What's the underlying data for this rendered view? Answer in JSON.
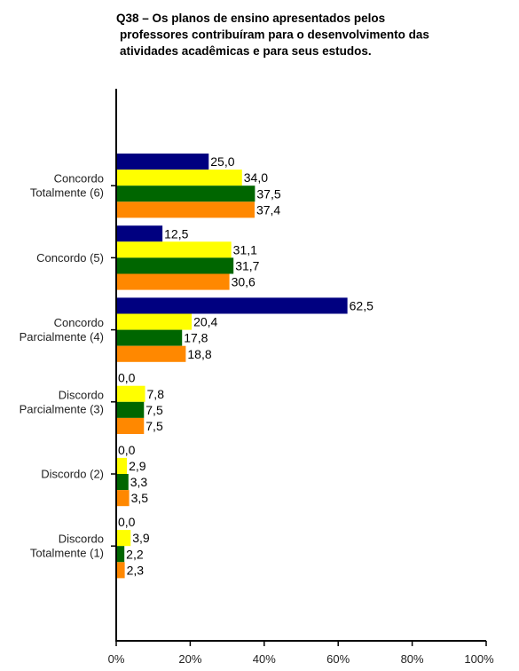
{
  "chart_data": {
    "type": "bar",
    "orientation": "horizontal",
    "title": [
      "Q38 – Os planos de ensino apresentados pelos",
      "professores contribuíram para o desenvolvimento das",
      "atividades acadêmicas e para seus estudos."
    ],
    "categories": [
      [
        "Concordo",
        "Totalmente (6)"
      ],
      [
        "Concordo (5)"
      ],
      [
        "Concordo",
        "Parcialmente (4)"
      ],
      [
        "Discordo",
        "Parcialmente (3)"
      ],
      [
        "Discordo (2)"
      ],
      [
        "Discordo",
        "Totalmente (1)"
      ]
    ],
    "series": [
      {
        "color": "#000080",
        "values": [
          25.0,
          12.5,
          62.5,
          0.0,
          0.0,
          0.0
        ],
        "labels": [
          "25,0",
          "12,5",
          "62,5",
          "0,0",
          "0,0",
          "0,0"
        ]
      },
      {
        "color": "#FFFF00",
        "values": [
          34.0,
          31.1,
          20.4,
          7.8,
          2.9,
          3.9
        ],
        "labels": [
          "34,0",
          "31,1",
          "20,4",
          "7,8",
          "2,9",
          "3,9"
        ]
      },
      {
        "color": "#006600",
        "values": [
          37.5,
          31.7,
          17.8,
          7.5,
          3.3,
          2.2
        ],
        "labels": [
          "37,5",
          "31,7",
          "17,8",
          "7,5",
          "3,3",
          "2,2"
        ]
      },
      {
        "color": "#FF8800",
        "values": [
          37.4,
          30.6,
          18.8,
          7.5,
          3.5,
          2.3
        ],
        "labels": [
          "37,4",
          "30,6",
          "18,8",
          "7,5",
          "3,5",
          "2,3"
        ]
      }
    ],
    "xlim": [
      0,
      100
    ],
    "xticks": [
      0,
      20,
      40,
      60,
      80,
      100
    ],
    "xtick_labels": [
      "0%",
      "20%",
      "40%",
      "60%",
      "80%",
      "100%"
    ],
    "grid": false,
    "legend": "none"
  }
}
